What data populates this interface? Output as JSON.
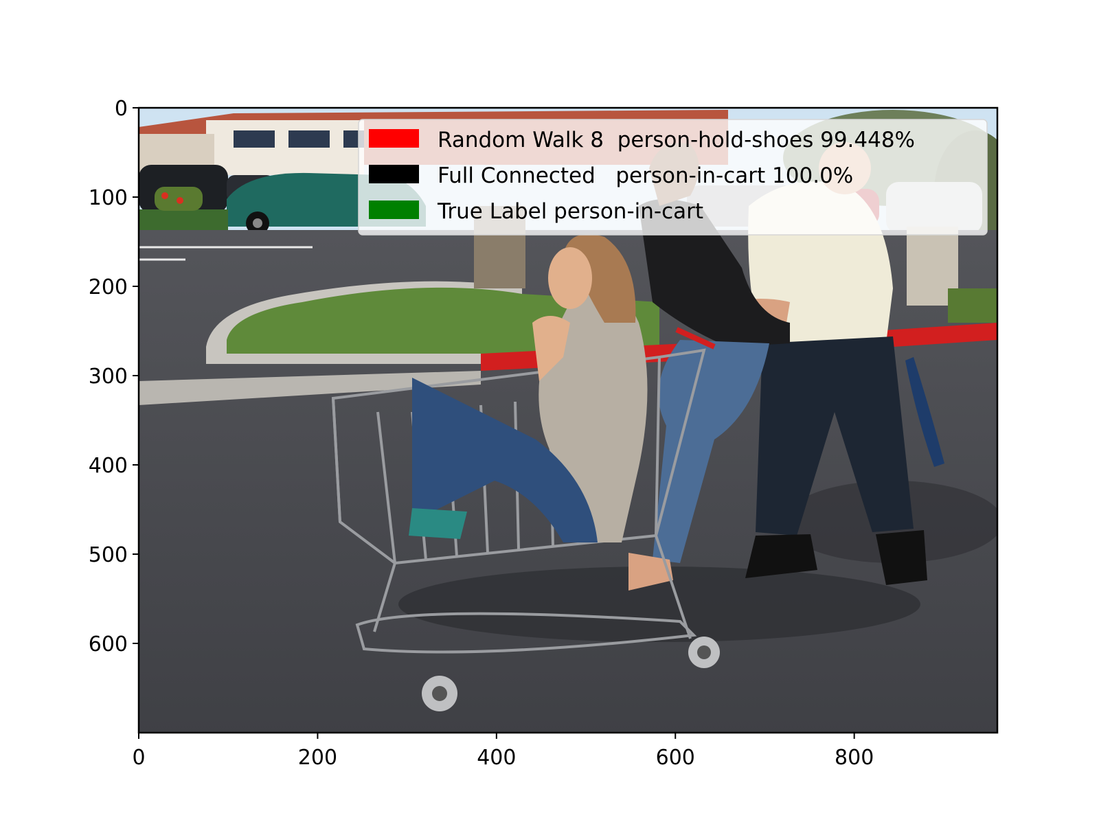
{
  "figure": {
    "description_shown": "photo of a woman sitting in a shopping cart being pushed by two people in a parking lot",
    "x_axis": {
      "ticks": [
        "0",
        "200",
        "400",
        "600",
        "800"
      ],
      "range": [
        0,
        960
      ]
    },
    "y_axis": {
      "ticks": [
        "0",
        "100",
        "200",
        "300",
        "400",
        "500",
        "600"
      ],
      "range": [
        0,
        700
      ],
      "inverted": true
    }
  },
  "legend": {
    "entries": [
      {
        "label": "Random Walk 8  person-hold-shoes 99.448%",
        "color": "#ff0000"
      },
      {
        "label": "Full Connected   person-in-cart 100.0%",
        "color": "#000000"
      },
      {
        "label": "True Label person-in-cart",
        "color": "#008000"
      }
    ]
  },
  "colors": {
    "sky": "#cfe3f2",
    "asphalt": "#4a4b50",
    "grass": "#5f8a3a",
    "curb_red": "#d21f1f",
    "cart_metal": "#9a9ca0"
  }
}
